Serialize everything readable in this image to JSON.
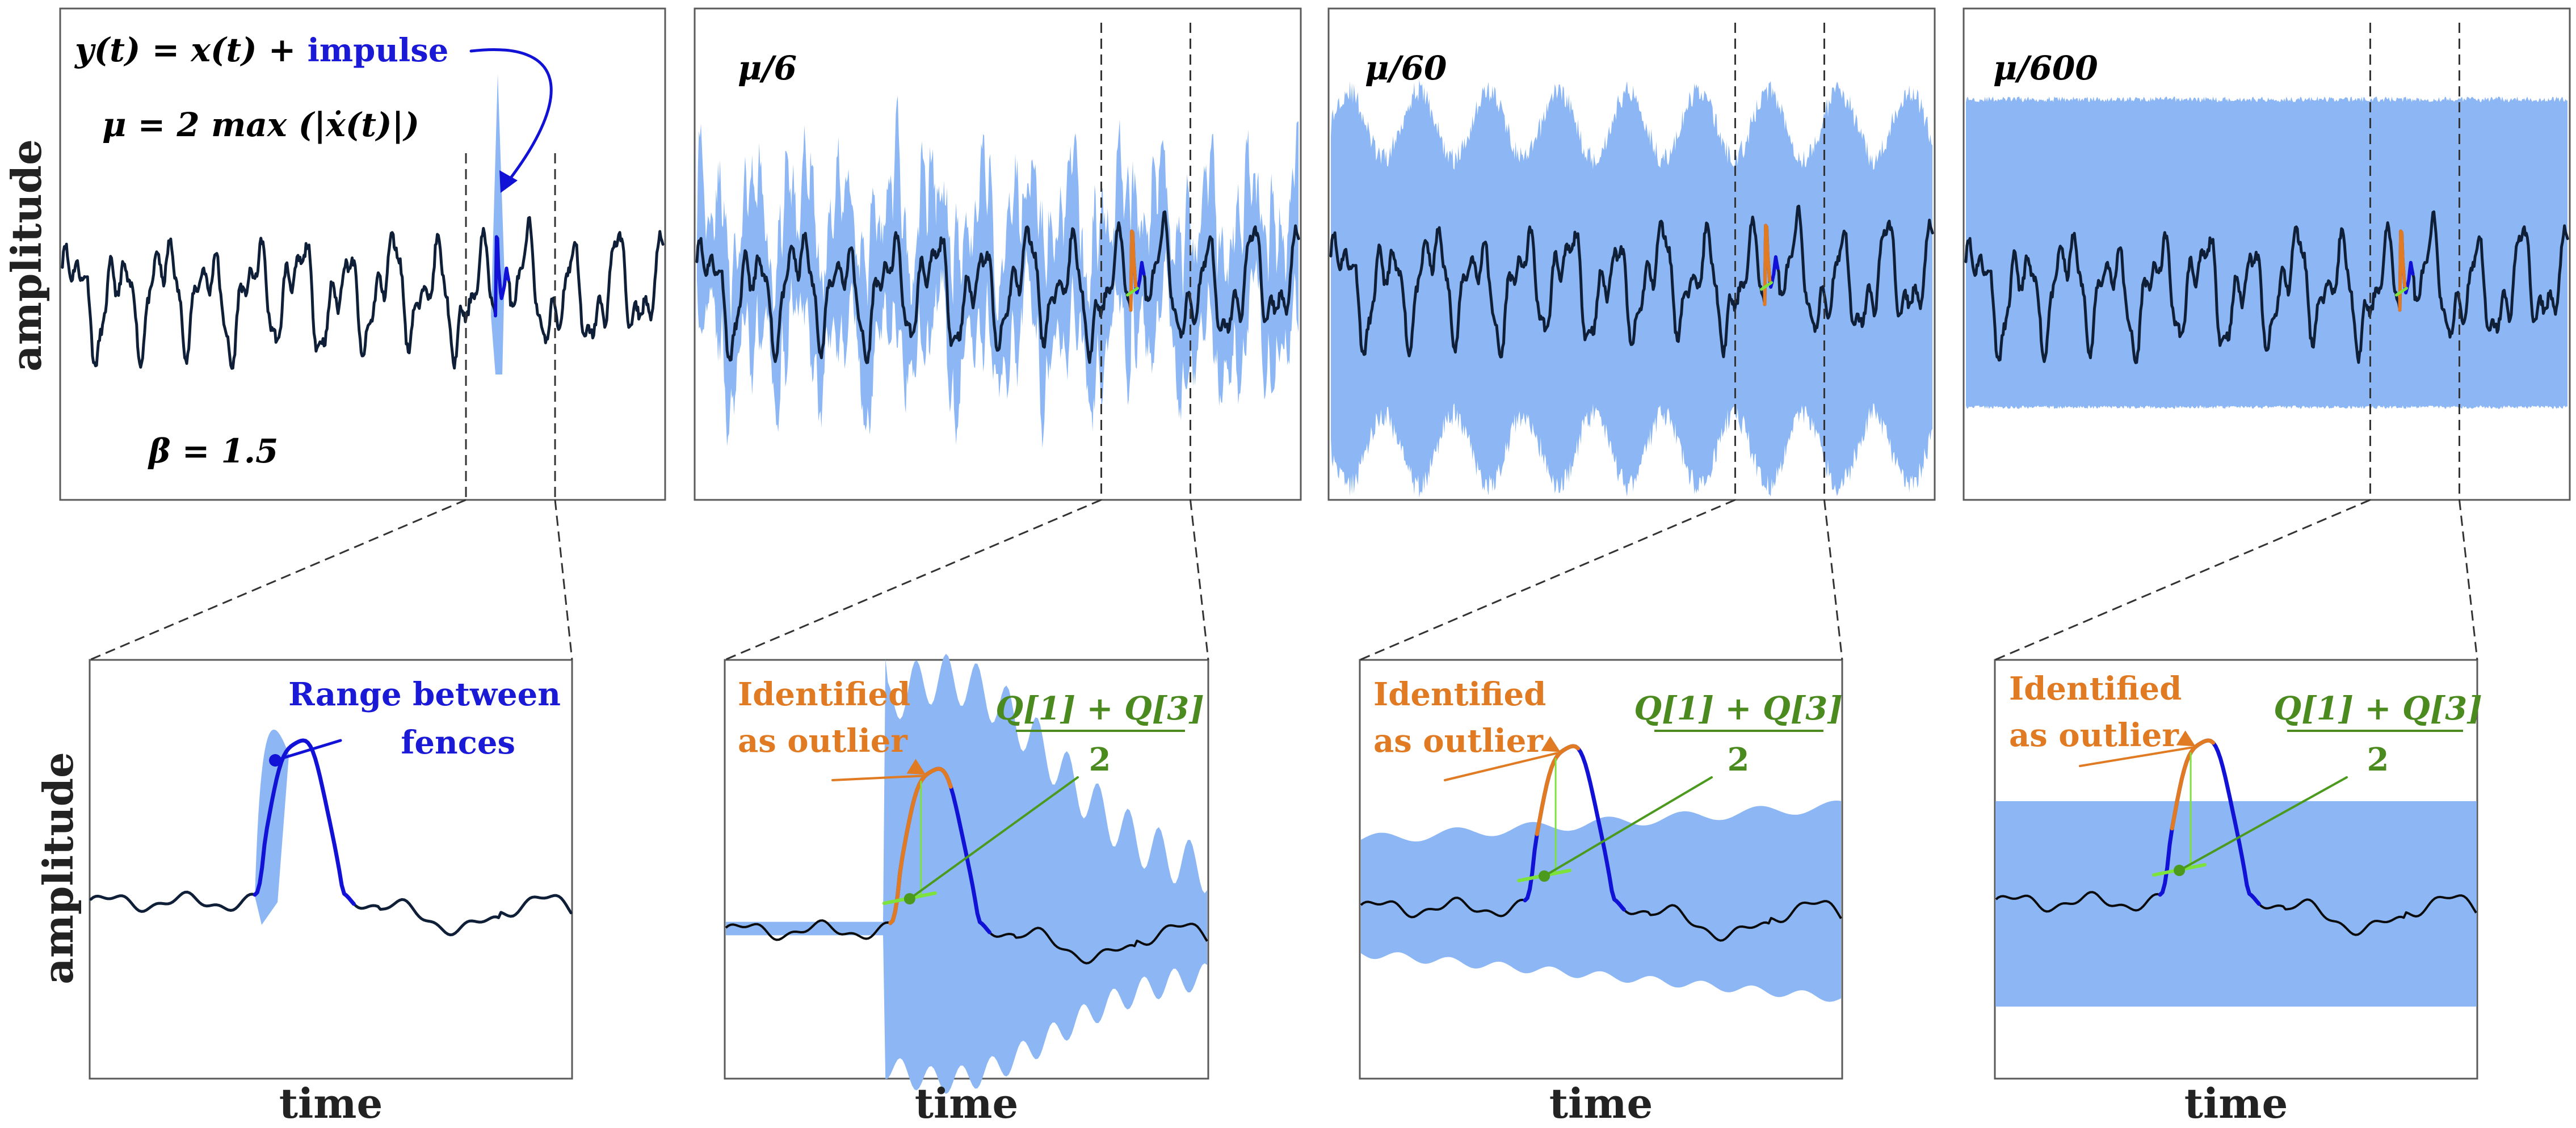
{
  "figure": {
    "equation": {
      "prefix": "y(t) = x(t) + ",
      "impulse_word": "impulse",
      "mu_definition": "μ = 2 max (|ẋ(t)|)",
      "beta": "β = 1.5"
    },
    "top_panels": [
      {
        "label": ""
      },
      {
        "label": "μ/6"
      },
      {
        "label": "μ/60"
      },
      {
        "label": "μ/600"
      }
    ],
    "axis": {
      "ylabel_top": "amplitude",
      "ylabel_bottom": "amplitude",
      "xlabels": [
        "time",
        "time",
        "time",
        "time"
      ]
    },
    "annotations": {
      "range_line1": "Range between",
      "range_line2": "fences",
      "outlier_line1": "Identified",
      "outlier_line2": "as outlier",
      "quartile_numerator": "Q[1] + Q[3]",
      "quartile_denominator": "2"
    },
    "colors": {
      "band": "#8cb7f4",
      "signal": "#0f1f38",
      "impulse": "#1212d6",
      "outlier": "#e07b24",
      "median": "#7ee23c",
      "median_text": "#4b8a1e"
    }
  }
}
